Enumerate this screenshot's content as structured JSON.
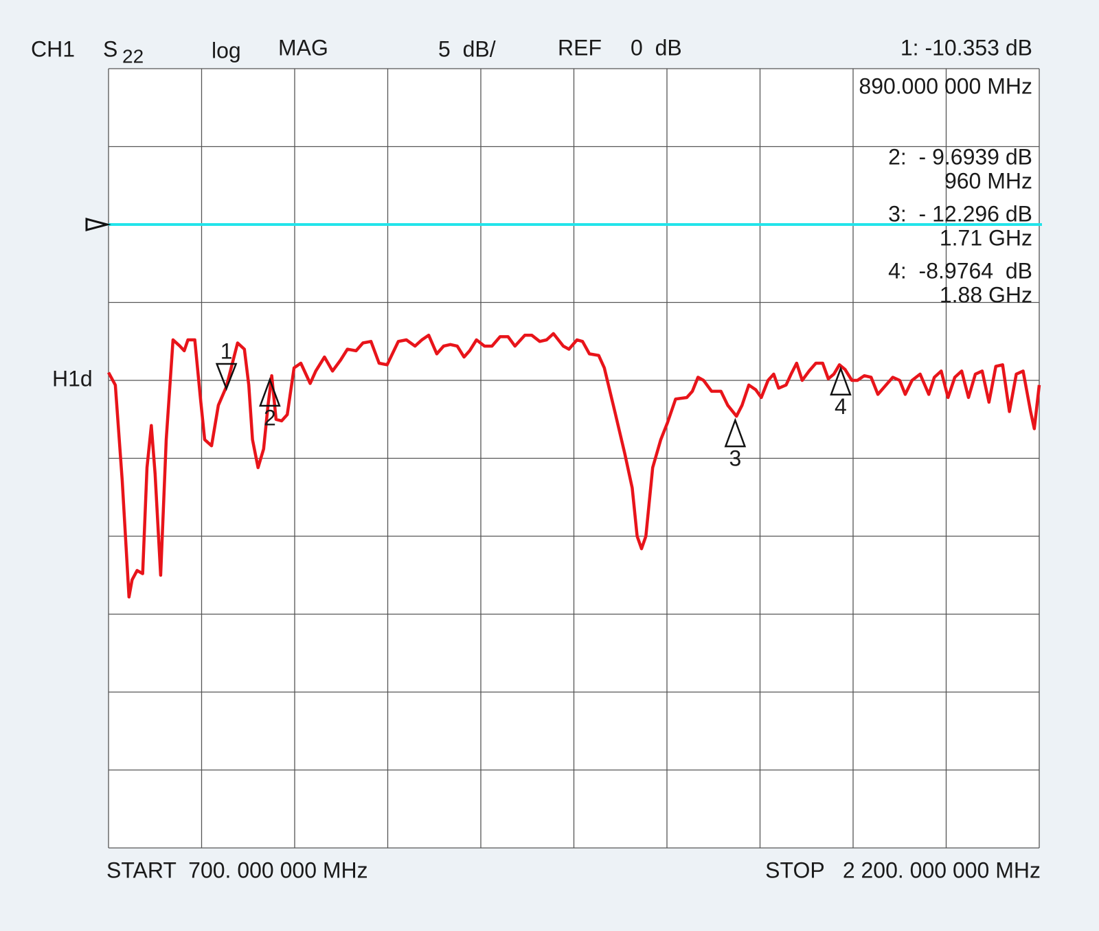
{
  "chart_data": {
    "type": "line",
    "header": {
      "channel": "CH1",
      "param": "S",
      "param_sub": "22",
      "format": "log",
      "mode": "MAG",
      "scale": "5  dB/",
      "ref_word": "REF",
      "ref_value": "0  dB"
    },
    "start_label": "START  700. 000 000 MHz",
    "stop_label": "STOP   2 200. 000 000 MHz",
    "ref_level": 0,
    "h1d_label": "H1d",
    "h1d_level": -10,
    "ref_line_color": "#22e4ea",
    "xlim": [
      700,
      2200
    ],
    "ylim": [
      -40,
      10
    ],
    "xticks": [
      700,
      850,
      1000,
      1150,
      1300,
      1450,
      1600,
      1750,
      1900,
      2050,
      2200
    ],
    "yticks": [
      10,
      5,
      0,
      -5,
      -10,
      -15,
      -20,
      -25,
      -30,
      -35,
      -40
    ],
    "grid": true,
    "x": [
      700,
      711,
      722,
      733,
      738,
      746,
      755,
      762,
      769,
      775,
      784,
      793,
      804,
      815,
      822,
      828,
      839,
      848,
      855,
      866,
      877,
      890,
      908,
      919,
      926,
      932,
      941,
      950,
      957,
      963,
      970,
      979,
      988,
      999,
      1010,
      1025,
      1034,
      1048,
      1061,
      1074,
      1085,
      1099,
      1110,
      1123,
      1136,
      1149,
      1167,
      1180,
      1194,
      1205,
      1216,
      1229,
      1240,
      1251,
      1262,
      1273,
      1282,
      1293,
      1306,
      1318,
      1331,
      1344,
      1355,
      1371,
      1382,
      1395,
      1406,
      1417,
      1433,
      1442,
      1455,
      1464,
      1475,
      1490,
      1499,
      1516,
      1532,
      1544,
      1552,
      1559,
      1566,
      1577,
      1590,
      1601,
      1614,
      1632,
      1641,
      1650,
      1659,
      1672,
      1687,
      1698,
      1712,
      1721,
      1732,
      1743,
      1752,
      1763,
      1772,
      1780,
      1792,
      1800,
      1809,
      1818,
      1829,
      1840,
      1851,
      1860,
      1869,
      1878,
      1887,
      1898,
      1907,
      1918,
      1929,
      1940,
      1953,
      1964,
      1975,
      1984,
      1995,
      2008,
      2022,
      2031,
      2042,
      2053,
      2064,
      2075,
      2086,
      2097,
      2108,
      2119,
      2130,
      2141,
      2152,
      2163,
      2174,
      2186,
      2192,
      2200
    ],
    "series": [
      {
        "color": "#e8141a",
        "values": [
          -9.5,
          -10.3,
          -16.4,
          -23.9,
          -22.8,
          -22.2,
          -22.4,
          -15.6,
          -12.9,
          -16.0,
          -22.5,
          -13.8,
          -7.4,
          -7.8,
          -8.1,
          -7.4,
          -7.4,
          -11.1,
          -13.8,
          -14.2,
          -11.6,
          -10.4,
          -7.6,
          -8.0,
          -10.3,
          -13.8,
          -15.6,
          -14.4,
          -11.6,
          -9.7,
          -12.5,
          -12.6,
          -12.2,
          -9.2,
          -8.9,
          -10.2,
          -9.4,
          -8.5,
          -9.4,
          -8.7,
          -8.0,
          -8.1,
          -7.6,
          -7.5,
          -8.9,
          -9.0,
          -7.5,
          -7.4,
          -7.8,
          -7.4,
          -7.1,
          -8.3,
          -7.8,
          -7.7,
          -7.8,
          -8.5,
          -8.1,
          -7.4,
          -7.8,
          -7.8,
          -7.2,
          -7.2,
          -7.8,
          -7.1,
          -7.1,
          -7.5,
          -7.4,
          -7.0,
          -7.8,
          -8.0,
          -7.4,
          -7.5,
          -8.3,
          -8.4,
          -9.2,
          -12.0,
          -14.7,
          -16.9,
          -20.0,
          -20.8,
          -20.0,
          -15.6,
          -13.8,
          -12.7,
          -11.2,
          -11.1,
          -10.7,
          -9.8,
          -10.0,
          -10.7,
          -10.7,
          -11.6,
          -12.3,
          -11.6,
          -10.3,
          -10.6,
          -11.1,
          -10.0,
          -9.6,
          -10.5,
          -10.3,
          -9.6,
          -8.9,
          -10.0,
          -9.4,
          -8.9,
          -8.9,
          -9.9,
          -9.6,
          -9.0,
          -9.3,
          -10.0,
          -10.0,
          -9.7,
          -9.8,
          -10.9,
          -10.3,
          -9.8,
          -10.0,
          -10.9,
          -10.0,
          -9.6,
          -10.9,
          -9.8,
          -9.4,
          -11.1,
          -9.8,
          -9.4,
          -11.1,
          -9.6,
          -9.4,
          -11.4,
          -9.1,
          -9.0,
          -12.0,
          -9.6,
          -9.4,
          -12.0,
          -13.1,
          -10.3
        ]
      }
    ],
    "markers": {
      "names": [
        "1",
        "2",
        "3",
        "4"
      ],
      "x": [
        890,
        960,
        1710,
        1880
      ],
      "values": [
        -10.353,
        -9.6939,
        -12.296,
        -8.9764
      ],
      "value_labels": [
        "1: -10.353 dB",
        "2:  - 9.6939 dB",
        "3:  - 12.296 dB",
        "4:  -8.9764  dB"
      ],
      "x_labels": [
        "890.000 000 MHz",
        "960 MHz",
        "1.71 GHz",
        "1.88 GHz"
      ],
      "active": 0
    }
  }
}
